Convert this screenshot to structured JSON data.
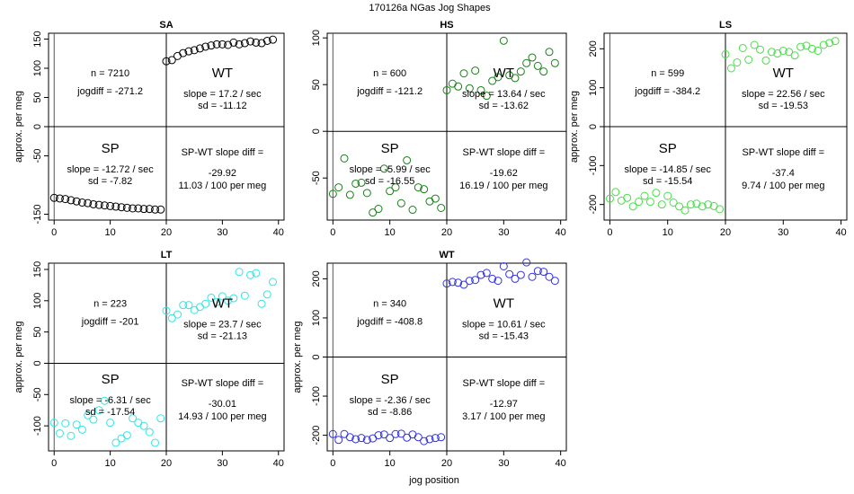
{
  "title": "170126a    NGas Jog Shapes",
  "x_label": "jog position",
  "y_label": "approx. per meg",
  "chart_data": [
    {
      "type": "scatter",
      "title": "SA",
      "color": "#000000",
      "xlim": [
        -1,
        41
      ],
      "ylim": [
        -160,
        160
      ],
      "xticks": [
        "0",
        "10",
        "20",
        "30",
        "40"
      ],
      "xtick_values": [
        0,
        10,
        20,
        30,
        40
      ],
      "yticks": [
        "-150",
        "-50",
        "0",
        "50",
        "100",
        "150"
      ],
      "ytick_values": [
        -150,
        -50,
        0,
        50,
        100,
        150
      ],
      "show_x_axis": false,
      "show_y_label": true,
      "labels": {
        "n": "n = 7210",
        "jogdiff": "jogdiff = -271.2",
        "wt": "WT",
        "wt_slope": "slope = 17.2 / sec",
        "wt_sd": "sd = -11.12",
        "sp": "SP",
        "sp_slope": "slope = -12.72 / sec",
        "sp_sd": "sd = -7.82",
        "diff_title": "SP-WT slope diff =",
        "diff_value": "-29.92",
        "diff_rate": "11.03 / 100 per meg"
      },
      "series": [
        {
          "name": "SP",
          "x": [
            0,
            1,
            2,
            3,
            4,
            5,
            6,
            7,
            8,
            9,
            10,
            11,
            12,
            13,
            14,
            15,
            16,
            17,
            18,
            19
          ],
          "y": [
            -122,
            -123,
            -124,
            -126,
            -128,
            -130,
            -131,
            -133,
            -134,
            -135,
            -136,
            -137,
            -138,
            -139,
            -140,
            -140,
            -141,
            -141,
            -142,
            -142
          ]
        },
        {
          "name": "WT",
          "x": [
            20,
            21,
            22,
            23,
            24,
            25,
            26,
            27,
            28,
            29,
            30,
            31,
            32,
            33,
            34,
            35,
            36,
            37,
            38,
            39
          ],
          "y": [
            112,
            114,
            121,
            126,
            129,
            131,
            134,
            137,
            139,
            141,
            141,
            140,
            144,
            141,
            143,
            146,
            144,
            143,
            147,
            149
          ]
        }
      ]
    },
    {
      "type": "scatter",
      "title": "HS",
      "color": "#1a7f1a",
      "xlim": [
        -1,
        41
      ],
      "ylim": [
        -95,
        105
      ],
      "xticks": [
        "0",
        "10",
        "20",
        "30",
        "40"
      ],
      "xtick_values": [
        0,
        10,
        20,
        30,
        40
      ],
      "yticks": [
        "-50",
        "0",
        "50",
        "100"
      ],
      "ytick_values": [
        -50,
        0,
        50,
        100
      ],
      "show_x_axis": true,
      "show_y_label": false,
      "labels": {
        "n": "n = 600",
        "jogdiff": "jogdiff = -121.2",
        "wt": "WT",
        "wt_slope": "slope = 13.64 / sec",
        "wt_sd": "sd = -13.62",
        "sp": "SP",
        "sp_slope": "slope = -5.99 / sec",
        "sp_sd": "sd = -16.55",
        "diff_title": "SP-WT slope diff =",
        "diff_value": "-19.62",
        "diff_rate": "16.19 / 100 per meg"
      },
      "series": [
        {
          "name": "SP",
          "x": [
            0,
            1,
            2,
            3,
            4,
            5,
            6,
            7,
            8,
            9,
            10,
            11,
            12,
            13,
            14,
            15,
            16,
            17,
            18,
            19
          ],
          "y": [
            -67,
            -60,
            -29,
            -68,
            -56,
            -55,
            -66,
            -87,
            -83,
            -40,
            -64,
            -60,
            -77,
            -31,
            -84,
            -60,
            -62,
            -75,
            -72,
            -82
          ]
        },
        {
          "name": "WT",
          "x": [
            20,
            21,
            22,
            23,
            24,
            25,
            26,
            27,
            28,
            29,
            30,
            31,
            32,
            33,
            34,
            35,
            36,
            37,
            38,
            39
          ],
          "y": [
            44,
            51,
            48,
            62,
            46,
            65,
            44,
            38,
            54,
            58,
            97,
            60,
            57,
            64,
            73,
            79,
            70,
            64,
            85,
            73
          ]
        }
      ]
    },
    {
      "type": "scatter",
      "title": "LS",
      "color": "#4cdd4c",
      "xlim": [
        -1,
        41
      ],
      "ylim": [
        -240,
        240
      ],
      "xticks": [
        "0",
        "10",
        "20",
        "30",
        "40"
      ],
      "xtick_values": [
        0,
        10,
        20,
        30,
        40
      ],
      "yticks": [
        "-200",
        "-100",
        "0",
        "100",
        "200"
      ],
      "ytick_values": [
        -200,
        -100,
        0,
        100,
        200
      ],
      "show_x_axis": false,
      "show_y_label": true,
      "labels": {
        "n": "n = 599",
        "jogdiff": "jogdiff = -384.2",
        "wt": "WT",
        "wt_slope": "slope = 22.56 / sec",
        "wt_sd": "sd = -19.53",
        "sp": "SP",
        "sp_slope": "slope = -14.85 / sec",
        "sp_sd": "sd = -15.54",
        "diff_title": "SP-WT slope diff =",
        "diff_value": "-37.4",
        "diff_rate": "9.74 / 100 per meg"
      },
      "series": [
        {
          "name": "SP",
          "x": [
            0,
            1,
            2,
            3,
            4,
            5,
            6,
            7,
            8,
            9,
            10,
            11,
            12,
            13,
            14,
            15,
            16,
            17,
            18,
            19
          ],
          "y": [
            -185,
            -168,
            -190,
            -183,
            -205,
            -193,
            -178,
            -193,
            -170,
            -200,
            -178,
            -195,
            -205,
            -215,
            -200,
            -198,
            -205,
            -200,
            -204,
            -212
          ]
        },
        {
          "name": "WT",
          "x": [
            20,
            21,
            22,
            23,
            24,
            25,
            26,
            27,
            28,
            29,
            30,
            31,
            32,
            33,
            34,
            35,
            36,
            37,
            38,
            39
          ],
          "y": [
            186,
            150,
            165,
            202,
            172,
            210,
            198,
            170,
            192,
            188,
            195,
            192,
            183,
            205,
            208,
            200,
            195,
            210,
            215,
            220
          ]
        }
      ]
    },
    {
      "type": "scatter",
      "title": "LT",
      "color": "#33e5e5",
      "xlim": [
        -1,
        41
      ],
      "ylim": [
        -140,
        160
      ],
      "xticks": [
        "0",
        "10",
        "20",
        "30",
        "40"
      ],
      "xtick_values": [
        0,
        10,
        20,
        30,
        40
      ],
      "yticks": [
        "-100",
        "-50",
        "0",
        "50",
        "100",
        "150"
      ],
      "ytick_values": [
        -100,
        -50,
        0,
        50,
        100,
        150
      ],
      "show_x_axis": true,
      "show_y_label": true,
      "labels": {
        "n": "n = 223",
        "jogdiff": "jogdiff = -201",
        "wt": "WT",
        "wt_slope": "slope = 23.7 / sec",
        "wt_sd": "sd = -21.13",
        "sp": "SP",
        "sp_slope": "slope = -6.31 / sec",
        "sp_sd": "sd = -17.54",
        "diff_title": "SP-WT slope diff =",
        "diff_value": "-30.01",
        "diff_rate": "14.93 / 100 per meg"
      },
      "series": [
        {
          "name": "SP",
          "x": [
            0,
            1,
            2,
            3,
            4,
            5,
            6,
            7,
            8,
            9,
            10,
            11,
            12,
            13,
            14,
            15,
            16,
            17,
            18,
            19
          ],
          "y": [
            -95,
            -112,
            -96,
            -116,
            -98,
            -106,
            -83,
            -90,
            -75,
            -60,
            -95,
            -127,
            -120,
            -115,
            -88,
            -95,
            -100,
            -110,
            -127,
            -88
          ]
        },
        {
          "name": "WT",
          "x": [
            20,
            21,
            22,
            23,
            24,
            25,
            26,
            27,
            28,
            29,
            30,
            31,
            32,
            33,
            34,
            35,
            36,
            37,
            38,
            39
          ],
          "y": [
            84,
            72,
            78,
            93,
            93,
            85,
            90,
            95,
            105,
            98,
            107,
            100,
            104,
            146,
            108,
            141,
            144,
            95,
            110,
            130
          ]
        }
      ]
    },
    {
      "type": "scatter",
      "title": "WT",
      "color": "#3333dd",
      "xlim": [
        -1,
        41
      ],
      "ylim": [
        -240,
        240
      ],
      "xticks": [
        "0",
        "10",
        "20",
        "30",
        "40"
      ],
      "xtick_values": [
        0,
        10,
        20,
        30,
        40
      ],
      "yticks": [
        "-200",
        "-100",
        "0",
        "100",
        "200"
      ],
      "ytick_values": [
        -200,
        -100,
        0,
        100,
        200
      ],
      "show_x_axis": true,
      "show_y_label": true,
      "labels": {
        "n": "n = 340",
        "jogdiff": "jogdiff = -408.8",
        "wt": "WT",
        "wt_slope": "slope = 10.61 / sec",
        "wt_sd": "sd = -15.43",
        "sp": "SP",
        "sp_slope": "slope = -2.36 / sec",
        "sp_sd": "sd = -8.86",
        "diff_title": "SP-WT slope diff =",
        "diff_value": "-12.97",
        "diff_rate": "3.17 / 100 per meg"
      },
      "series": [
        {
          "name": "SP",
          "x": [
            0,
            1,
            2,
            3,
            4,
            5,
            6,
            7,
            8,
            9,
            10,
            11,
            12,
            13,
            14,
            15,
            16,
            17,
            18,
            19
          ],
          "y": [
            -197,
            -212,
            -197,
            -205,
            -210,
            -207,
            -212,
            -208,
            -200,
            -198,
            -207,
            -197,
            -196,
            -206,
            -198,
            -205,
            -215,
            -210,
            -207,
            -205
          ]
        },
        {
          "name": "WT",
          "x": [
            20,
            21,
            22,
            23,
            24,
            25,
            26,
            27,
            28,
            29,
            30,
            31,
            32,
            33,
            34,
            35,
            36,
            37,
            38,
            39
          ],
          "y": [
            188,
            192,
            190,
            185,
            195,
            197,
            210,
            215,
            200,
            195,
            232,
            212,
            200,
            210,
            242,
            205,
            220,
            218,
            205,
            195
          ]
        }
      ]
    }
  ]
}
